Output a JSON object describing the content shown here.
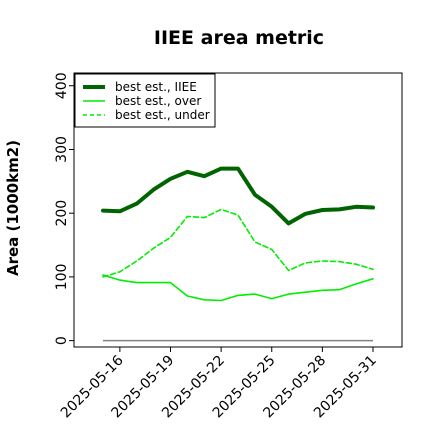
{
  "chart_data": {
    "type": "line",
    "title": "IIEE area metric",
    "xlabel": "",
    "ylabel": "Area (1000km2)",
    "x": [
      "2025-05-15",
      "2025-05-16",
      "2025-05-17",
      "2025-05-18",
      "2025-05-19",
      "2025-05-20",
      "2025-05-21",
      "2025-05-22",
      "2025-05-23",
      "2025-05-24",
      "2025-05-25",
      "2025-05-26",
      "2025-05-27",
      "2025-05-28",
      "2025-05-29",
      "2025-05-30",
      "2025-05-31"
    ],
    "x_tick_labels": [
      "2025-05-16",
      "2025-05-19",
      "2025-05-22",
      "2025-05-25",
      "2025-05-28",
      "2025-05-31"
    ],
    "ylim": [
      -10,
      420
    ],
    "y_ticks": [
      0,
      100,
      200,
      300,
      400
    ],
    "grid": false,
    "legend_position": "top-left",
    "series": [
      {
        "name": "best est., IIEE",
        "color": "#006400",
        "style": "solid-thick",
        "values": [
          204,
          203,
          215,
          237,
          254,
          265,
          258,
          270,
          270,
          229,
          210,
          184,
          199,
          205,
          206,
          210,
          209
        ]
      },
      {
        "name": "best est., over",
        "color": "#00ee00",
        "style": "solid",
        "values": [
          103,
          95,
          91,
          91,
          91,
          70,
          64,
          63,
          71,
          73,
          66,
          73,
          76,
          79,
          80,
          89,
          97
        ]
      },
      {
        "name": "best est., under",
        "color": "#00ee00",
        "style": "dashed",
        "values": [
          100,
          108,
          125,
          145,
          162,
          195,
          193,
          206,
          197,
          155,
          143,
          110,
          122,
          125,
          124,
          120,
          112
        ]
      }
    ],
    "baseline": {
      "value": 0,
      "color": "#808080"
    }
  }
}
